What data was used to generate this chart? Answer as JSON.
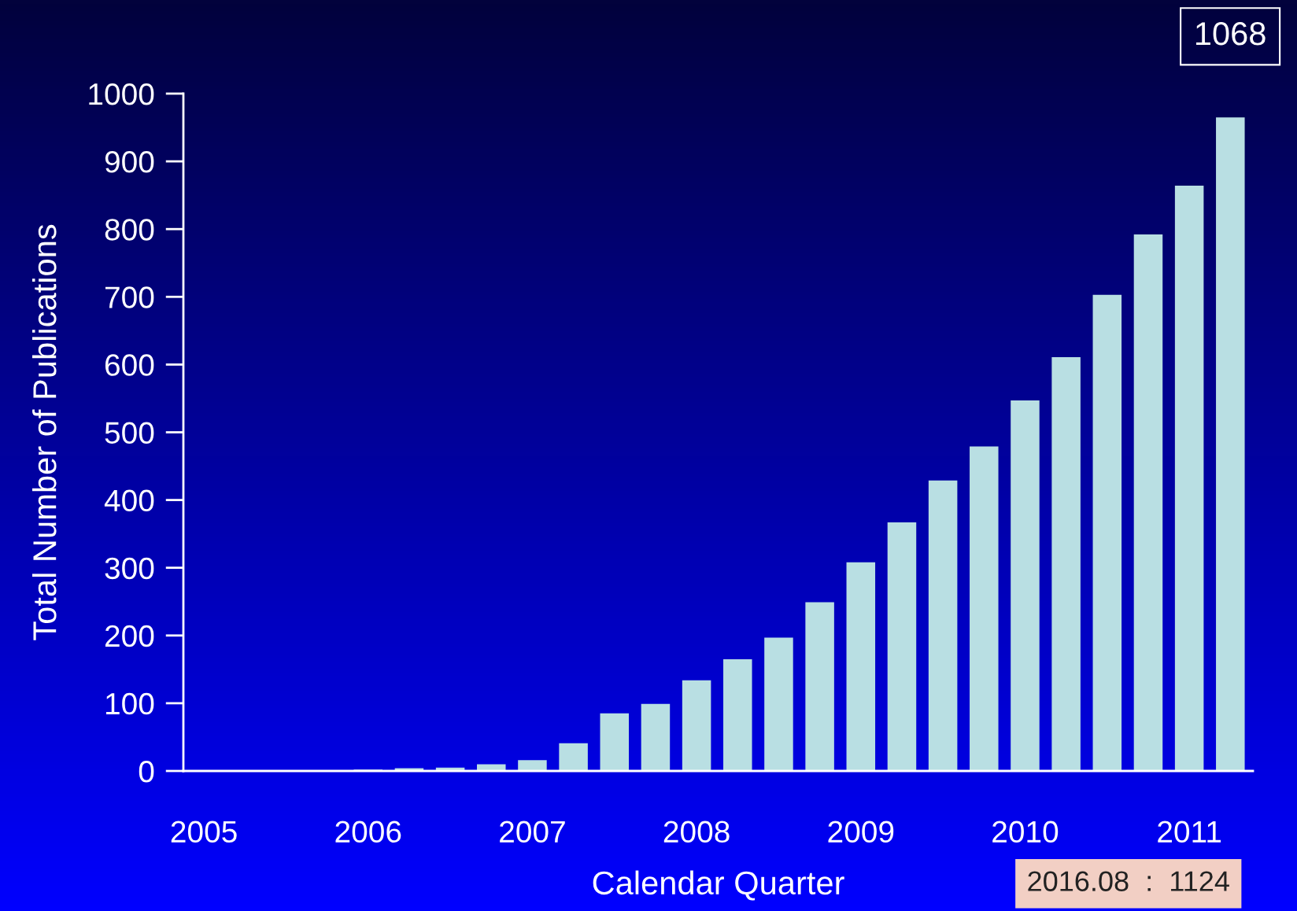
{
  "chart_data": {
    "type": "bar",
    "xlabel": "Calendar Quarter",
    "ylabel": "Total Number of Publications",
    "categories": [
      "2005",
      null,
      null,
      null,
      "2006",
      null,
      null,
      null,
      "2007",
      null,
      null,
      null,
      "2008",
      null,
      null,
      null,
      "2009",
      null,
      null,
      null,
      "2010",
      null,
      null,
      null,
      "2011",
      null
    ],
    "values": [
      0,
      1,
      1,
      1,
      2,
      4,
      5,
      10,
      16,
      41,
      85,
      99,
      134,
      165,
      197,
      249,
      308,
      367,
      429,
      479,
      547,
      611,
      703,
      792,
      864,
      965
    ],
    "color": "#b9dfe3",
    "ylim": [
      0,
      1000
    ],
    "yticks": [
      0,
      100,
      200,
      300,
      400,
      500,
      600,
      700,
      800,
      900,
      1000
    ],
    "grid": false,
    "legend": false,
    "annotations": [
      "1068",
      "2016.08  :  1124"
    ]
  }
}
